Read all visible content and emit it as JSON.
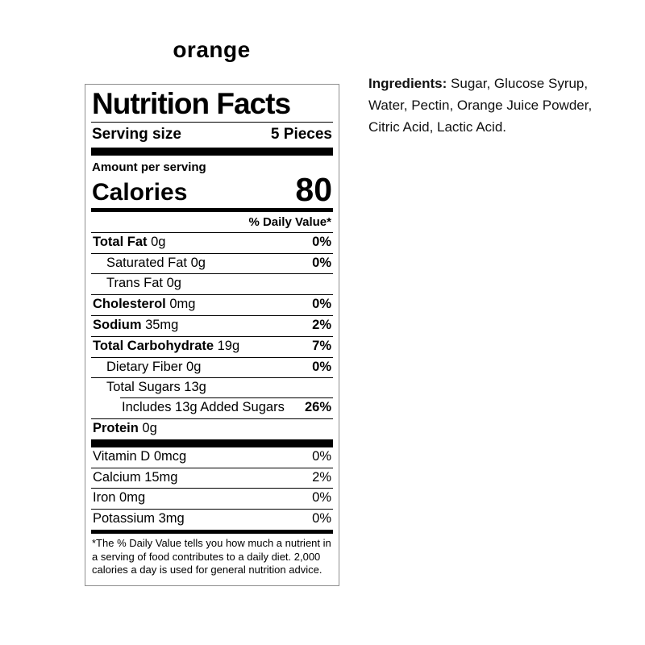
{
  "title": "orange",
  "colors": {
    "text": "#000000",
    "label_border": "#8f8f8f",
    "background": "#ffffff"
  },
  "label": {
    "title": "Nutrition Facts",
    "serving_size_label": "Serving size",
    "serving_size_value": "5 Pieces",
    "amount_per_serving": "Amount per serving",
    "calories_label": "Calories",
    "calories_value": "80",
    "daily_value_header": "% Daily Value*",
    "nutrient_rows": [
      {
        "name": "Total Fat",
        "amount": "0g",
        "dv": "0%",
        "bold": true,
        "dv_bold": true,
        "indent": 0
      },
      {
        "name": "Saturated Fat",
        "amount": "0g",
        "dv": "0%",
        "bold": false,
        "dv_bold": true,
        "indent": 1
      },
      {
        "name": "Trans Fat",
        "amount": "0g",
        "dv": "",
        "bold": false,
        "dv_bold": false,
        "indent": 1
      },
      {
        "name": "Cholesterol",
        "amount": "0mg",
        "dv": "0%",
        "bold": true,
        "dv_bold": true,
        "indent": 0
      },
      {
        "name": "Sodium",
        "amount": "35mg",
        "dv": "2%",
        "bold": true,
        "dv_bold": true,
        "indent": 0
      },
      {
        "name": "Total Carbohydrate",
        "amount": "19g",
        "dv": "7%",
        "bold": true,
        "dv_bold": true,
        "indent": 0
      },
      {
        "name": "Dietary Fiber",
        "amount": "0g",
        "dv": "0%",
        "bold": false,
        "dv_bold": true,
        "indent": 1
      },
      {
        "name": "Total Sugars",
        "amount": "13g",
        "dv": "",
        "bold": false,
        "dv_bold": false,
        "indent": 1
      },
      {
        "name": "Includes 13g Added Sugars",
        "amount": "",
        "dv": "26%",
        "bold": false,
        "dv_bold": true,
        "indent": 2,
        "sep": "indent"
      },
      {
        "name": "Protein",
        "amount": "0g",
        "dv": "",
        "bold": true,
        "dv_bold": false,
        "indent": 0
      }
    ],
    "vitamin_rows": [
      {
        "name": "Vitamin D",
        "amount": "0mcg",
        "dv": "0%",
        "bold": false,
        "dv_bold": false,
        "indent": 0
      },
      {
        "name": "Calcium",
        "amount": "15mg",
        "dv": "2%",
        "bold": false,
        "dv_bold": false,
        "indent": 0
      },
      {
        "name": "Iron",
        "amount": "0mg",
        "dv": "0%",
        "bold": false,
        "dv_bold": false,
        "indent": 0
      },
      {
        "name": "Potassium",
        "amount": "3mg",
        "dv": "0%",
        "bold": false,
        "dv_bold": false,
        "indent": 0
      }
    ],
    "footnote": "*The % Daily Value tells you how much a nutrient in a serving of food contributes to a daily diet. 2,000 calories a day is used for general nutrition advice."
  },
  "ingredients": {
    "label": "Ingredients:",
    "text": " Sugar, Glucose Syrup, Water, Pectin, Orange Juice Powder, Citric Acid, Lactic Acid."
  }
}
